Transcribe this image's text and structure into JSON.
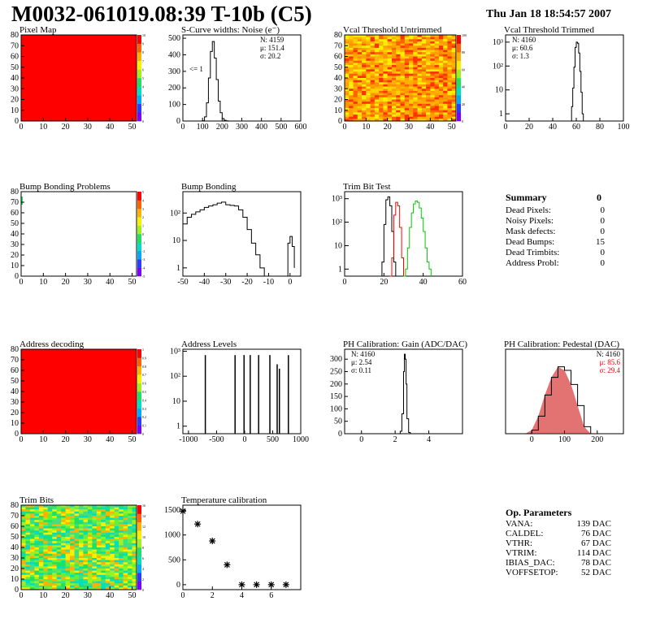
{
  "page": {
    "title": "M0032-061019.08:39 T-10b (C5)",
    "date": "Thu Jan 18 18:54:57 2007"
  },
  "colors": {
    "frame": "#000000",
    "line": "#000000",
    "red": "#ff0000",
    "green": "#00cc00",
    "pedestal_fill": "#cc0000"
  },
  "chart_data": [
    {
      "id": "pixel-map",
      "type": "heatmap",
      "title": "Pixel Map",
      "x_ticks": [
        0,
        10,
        20,
        30,
        40,
        50
      ],
      "y_ticks": [
        0,
        10,
        20,
        30,
        40,
        50,
        60,
        70,
        80
      ],
      "xlim": [
        0,
        52
      ],
      "ylim": [
        0,
        80
      ],
      "colorbar_ticks": [
        0,
        1,
        2,
        3,
        4,
        5,
        6,
        7,
        8,
        9,
        10
      ],
      "fill": "uniform-max"
    },
    {
      "id": "scurve-noise",
      "type": "line",
      "title": "S-Curve widths: Noise (e⁻)",
      "x_ticks": [
        0,
        100,
        200,
        300,
        400,
        500,
        600
      ],
      "y_ticks": [
        0,
        100,
        200,
        300,
        400,
        500
      ],
      "xlim": [
        0,
        600
      ],
      "ylim": [
        0,
        520
      ],
      "stats": [
        "N: 4159",
        "μ: 151.4",
        "σ: 20.2"
      ],
      "annotation": "<= 1",
      "series": [
        {
          "color": "black",
          "x": [
            0,
            80,
            100,
            110,
            120,
            130,
            140,
            150,
            160,
            170,
            180,
            190,
            200,
            210,
            220,
            230,
            600
          ],
          "y": [
            0,
            0,
            2,
            25,
            110,
            260,
            420,
            480,
            380,
            250,
            120,
            50,
            15,
            4,
            1,
            0,
            0
          ]
        }
      ]
    },
    {
      "id": "vcal-untrimmed",
      "type": "heatmap",
      "title": "Vcal Threshold Untrimmed",
      "x_ticks": [
        0,
        10,
        20,
        30,
        40,
        50
      ],
      "y_ticks": [
        0,
        10,
        20,
        30,
        40,
        50,
        60,
        70,
        80
      ],
      "xlim": [
        0,
        52
      ],
      "ylim": [
        0,
        80
      ],
      "colorbar_ticks": [
        0,
        20,
        40,
        60,
        80,
        100
      ],
      "fill": "noise-orange"
    },
    {
      "id": "vcal-trimmed",
      "type": "line",
      "title": "Vcal Threshold Trimmed",
      "x_ticks": [
        0,
        20,
        40,
        60,
        80,
        100
      ],
      "log_y": true,
      "ylim": [
        0.5,
        2000
      ],
      "xlim": [
        0,
        100
      ],
      "y_tick_labels": [
        "1",
        "10",
        "10²",
        "10³"
      ],
      "stats": [
        "N: 4160",
        "μ: 60.6",
        "σ: 1.3"
      ],
      "series": [
        {
          "color": "black",
          "x": [
            0,
            55,
            56,
            57,
            58,
            59,
            60,
            61,
            62,
            63,
            64,
            65,
            66,
            100
          ],
          "y": [
            0,
            0,
            2,
            12,
            90,
            600,
            1000,
            900,
            350,
            60,
            8,
            1,
            0,
            0
          ]
        }
      ]
    },
    {
      "id": "bump-problems",
      "type": "heatmap",
      "title": "Bump Bonding Problems",
      "x_ticks": [
        0,
        10,
        20,
        30,
        40,
        50
      ],
      "y_ticks": [
        0,
        10,
        20,
        30,
        40,
        50,
        60,
        70,
        80
      ],
      "xlim": [
        0,
        52
      ],
      "ylim": [
        0,
        80
      ],
      "colorbar_ticks": [
        -5,
        -4,
        -3,
        -2,
        -1,
        0,
        1,
        2,
        3,
        4,
        5
      ],
      "fill": "blank"
    },
    {
      "id": "bump-bonding",
      "type": "line",
      "title": "Bump Bonding",
      "x_ticks": [
        -50,
        -40,
        -30,
        -20,
        -10,
        0
      ],
      "log_y": true,
      "ylim": [
        0.5,
        600
      ],
      "xlim": [
        -50,
        5
      ],
      "y_tick_labels": [
        "1",
        "10",
        "10²"
      ],
      "series": [
        {
          "color": "black",
          "x": [
            -50,
            -48,
            -46,
            -44,
            -42,
            -40,
            -38,
            -36,
            -34,
            -32,
            -30,
            -28,
            -26,
            -24,
            -22,
            -20,
            -18,
            -16,
            -14,
            -12,
            -10,
            -8,
            -6,
            -4,
            -2,
            -1,
            0,
            1,
            2
          ],
          "y": [
            40,
            70,
            90,
            110,
            130,
            160,
            180,
            200,
            230,
            250,
            200,
            190,
            180,
            130,
            70,
            25,
            8,
            3,
            1,
            0,
            0,
            0,
            0,
            0,
            0,
            8,
            14,
            6,
            1
          ]
        }
      ]
    },
    {
      "id": "trim-bit-test",
      "type": "line",
      "title": "Trim Bit Test",
      "x_ticks": [
        0,
        20,
        40,
        60
      ],
      "log_y": true,
      "ylim": [
        0.5,
        2000
      ],
      "xlim": [
        0,
        60
      ],
      "y_tick_labels": [
        "1",
        "10",
        "10²",
        "10³"
      ],
      "series": [
        {
          "color": "black",
          "x": [
            18,
            19,
            20,
            21,
            22,
            23,
            24,
            25,
            26
          ],
          "y": [
            0,
            2,
            80,
            900,
            1200,
            500,
            40,
            2,
            0
          ]
        },
        {
          "color": "red",
          "x": [
            23,
            24,
            25,
            26,
            27,
            28,
            29,
            30
          ],
          "y": [
            0,
            3,
            200,
            700,
            500,
            60,
            3,
            0
          ]
        },
        {
          "color": "green",
          "x": [
            30,
            31,
            32,
            33,
            34,
            35,
            36,
            37,
            38,
            39,
            40,
            41,
            42,
            43,
            44
          ],
          "y": [
            0,
            1,
            8,
            60,
            250,
            600,
            800,
            700,
            400,
            150,
            40,
            8,
            2,
            1,
            0
          ]
        }
      ]
    },
    {
      "id": "address-decoding",
      "type": "heatmap",
      "title": "Address decoding",
      "x_ticks": [
        0,
        10,
        20,
        30,
        40,
        50
      ],
      "y_ticks": [
        0,
        10,
        20,
        30,
        40,
        50,
        60,
        70,
        80
      ],
      "xlim": [
        0,
        52
      ],
      "ylim": [
        0,
        80
      ],
      "colorbar_ticks": [
        0,
        0.1,
        0.2,
        0.3,
        0.4,
        0.5,
        0.6,
        0.7,
        0.8,
        0.9,
        1
      ],
      "fill": "uniform-max"
    },
    {
      "id": "address-levels",
      "type": "line",
      "title": "Address Levels",
      "x_ticks": [
        -1000,
        -500,
        0,
        500,
        1000
      ],
      "log_y": true,
      "ylim": [
        0.5,
        1200
      ],
      "xlim": [
        -1100,
        1000
      ],
      "y_tick_labels": [
        "1",
        "10",
        "10²",
        "10³"
      ],
      "series": [
        {
          "color": "black",
          "spikes": true,
          "x": [
            -700,
            -170,
            -10,
            100,
            250,
            450,
            580,
            620,
            780
          ],
          "y": [
            700,
            700,
            700,
            700,
            700,
            700,
            300,
            200,
            700
          ]
        }
      ]
    },
    {
      "id": "ph-gain",
      "type": "line",
      "title": "PH Calibration: Gain (ADC/DAC)",
      "x_ticks": [
        0,
        2,
        4
      ],
      "y_ticks": [
        0,
        50,
        100,
        150,
        200,
        250,
        300
      ],
      "xlim": [
        -1,
        6
      ],
      "ylim": [
        0,
        340
      ],
      "stats": [
        "N: 4160",
        "μ: 2.54",
        "σ: 0.11"
      ],
      "series": [
        {
          "color": "black",
          "x": [
            2.2,
            2.3,
            2.4,
            2.5,
            2.55,
            2.6,
            2.65,
            2.7,
            2.8,
            2.9
          ],
          "y": [
            0,
            10,
            80,
            250,
            320,
            300,
            200,
            60,
            5,
            0
          ]
        }
      ]
    },
    {
      "id": "ph-pedestal",
      "type": "line",
      "title": "PH Calibration: Pedestal (DAC)",
      "x_ticks": [
        0,
        100,
        200
      ],
      "xlim": [
        -80,
        280
      ],
      "ylim": [
        0,
        120
      ],
      "stats": [
        "N: 4160",
        "μ: 85.6",
        "σ: 29.4"
      ],
      "series": [
        {
          "color": "black",
          "fill": "red",
          "x": [
            -20,
            0,
            20,
            40,
            60,
            80,
            100,
            120,
            140,
            160,
            180
          ],
          "y": [
            0,
            5,
            25,
            55,
            80,
            95,
            90,
            70,
            40,
            10,
            0
          ]
        }
      ]
    },
    {
      "id": "trim-bits",
      "type": "heatmap",
      "title": "Trim Bits",
      "x_ticks": [
        0,
        10,
        20,
        30,
        40,
        50
      ],
      "y_ticks": [
        0,
        10,
        20,
        30,
        40,
        50,
        60,
        70,
        80
      ],
      "xlim": [
        0,
        52
      ],
      "ylim": [
        0,
        80
      ],
      "colorbar_ticks": [
        0,
        2,
        4,
        6,
        8,
        10,
        12,
        14,
        16
      ],
      "fill": "noise-green"
    },
    {
      "id": "temp-calibration",
      "type": "scatter",
      "title": "Temperature calibration",
      "x_ticks": [
        0,
        2,
        4,
        6
      ],
      "y_ticks": [
        0,
        500,
        1000,
        1500
      ],
      "xlim": [
        0,
        8
      ],
      "ylim": [
        -100,
        1600
      ],
      "series": [
        {
          "color": "black",
          "x": [
            0,
            1,
            2,
            3,
            4,
            5,
            6,
            7
          ],
          "y": [
            1480,
            1220,
            880,
            400,
            0,
            0,
            0,
            0
          ]
        }
      ]
    }
  ],
  "summary": {
    "title": "Summary",
    "total": "0",
    "rows": [
      {
        "label": "Dead Pixels:",
        "value": "0"
      },
      {
        "label": "Noisy Pixels:",
        "value": "0"
      },
      {
        "label": "Mask defects:",
        "value": "0"
      },
      {
        "label": "Dead Bumps:",
        "value": "15"
      },
      {
        "label": "Dead Trimbits:",
        "value": "0"
      },
      {
        "label": "Address Probl:",
        "value": "0"
      }
    ]
  },
  "op_parameters": {
    "title": "Op. Parameters",
    "rows": [
      {
        "label": "VANA:",
        "value": "139 DAC"
      },
      {
        "label": "CALDEL:",
        "value": "76 DAC"
      },
      {
        "label": "VTHR:",
        "value": "67 DAC"
      },
      {
        "label": "VTRIM:",
        "value": "114 DAC"
      },
      {
        "label": "IBIAS_DAC:",
        "value": "78 DAC"
      },
      {
        "label": "VOFFSETOP:",
        "value": "52 DAC"
      }
    ]
  }
}
